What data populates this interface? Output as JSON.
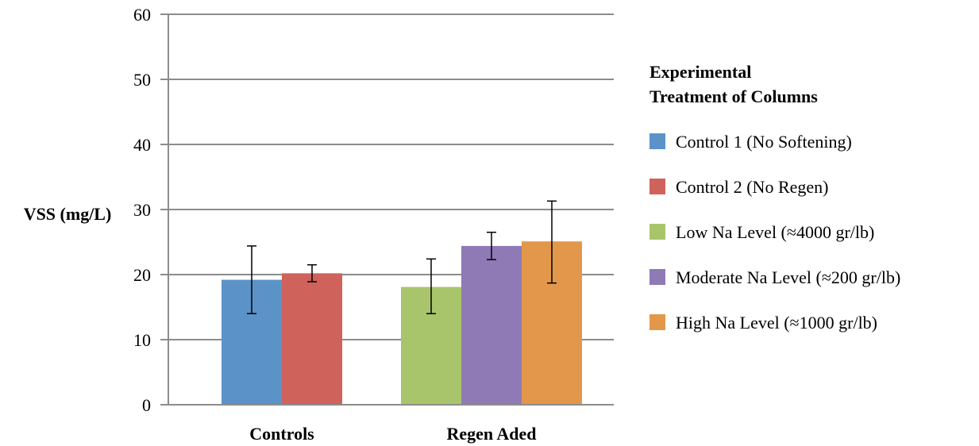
{
  "chart_data": {
    "type": "bar",
    "title": "",
    "xlabel": "",
    "ylabel": "VSS (mg/L)",
    "ylim": [
      0,
      60
    ],
    "yticks": [
      0,
      10,
      20,
      30,
      40,
      50,
      60
    ],
    "grid": true,
    "legend_position": "right",
    "legend_title": [
      "Experimental",
      "Treatment of Columns"
    ],
    "groups": [
      {
        "name": "Controls",
        "bars": [
          {
            "series": "Control 1 (No Softening)",
            "color": "#5b93c9",
            "value": 19.2,
            "err_low": 14.0,
            "err_high": 24.4
          },
          {
            "series": "Control 2 (No Regen)",
            "color": "#d0625c",
            "value": 20.2,
            "err_low": 18.9,
            "err_high": 21.5
          }
        ]
      },
      {
        "name": "Regen Aded",
        "bars": [
          {
            "series": "Low Na Level (≈4000 gr/lb)",
            "color": "#a9c56b",
            "value": 18.1,
            "err_low": 14.0,
            "err_high": 22.4
          },
          {
            "series": "Moderate Na Level (≈200 gr/lb)",
            "color": "#8f7ab6",
            "value": 24.4,
            "err_low": 22.3,
            "err_high": 26.5
          },
          {
            "series": "High Na Level (≈1000 gr/lb)",
            "color": "#e3974b",
            "value": 25.1,
            "err_low": 18.7,
            "err_high": 31.3
          }
        ]
      }
    ],
    "legend": [
      {
        "label": "Control 1 (No Softening)",
        "color": "#5b93c9"
      },
      {
        "label": "Control 2 (No Regen)",
        "color": "#d0625c"
      },
      {
        "label": "Low Na Level (≈4000 gr/lb)",
        "color": "#a9c56b"
      },
      {
        "label": "Moderate Na Level (≈200 gr/lb)",
        "color": "#8f7ab6"
      },
      {
        "label": "High Na Level (≈1000 gr/lb)",
        "color": "#e3974b"
      }
    ]
  }
}
